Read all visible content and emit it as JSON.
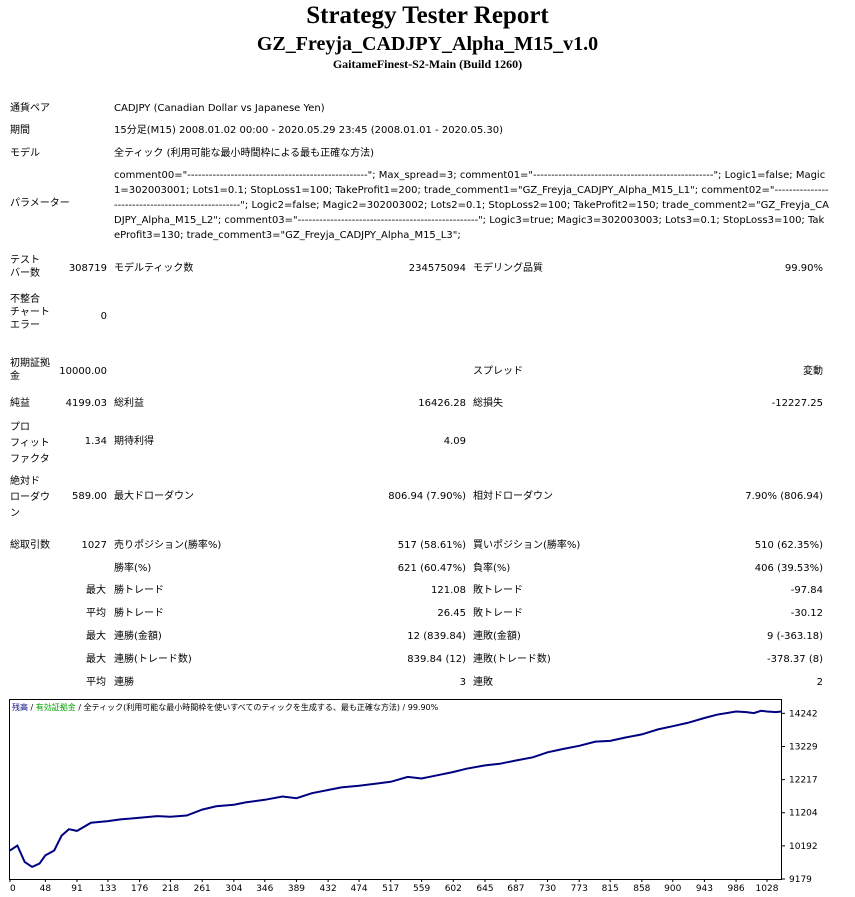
{
  "header": {
    "title": "Strategy Tester Report",
    "ea_name": "GZ_Freyja_CADJPY_Alpha_M15_v1.0",
    "server": "GaitameFinest-S2-Main (Build 1260)"
  },
  "info": {
    "symbol_label": "通貨ペア",
    "symbol_value": "CADJPY (Canadian Dollar vs Japanese Yen)",
    "period_label": "期間",
    "period_value": "15分足(M15) 2008.01.02 00:00 - 2020.05.29 23:45 (2008.01.01 - 2020.05.30)",
    "model_label": "モデル",
    "model_value": "全ティック (利用可能な最小時間枠による最も正確な方法)",
    "params_label": "パラメーター",
    "params_value": "comment00=\"--------------------------------------------------\"; Max_spread=3; comment01=\"--------------------------------------------------\"; Logic1=false; Magic1=302003001; Lots1=0.1; StopLoss1=100; TakeProfit1=200; trade_comment1=\"GZ_Freyja_CADJPY_Alpha_M15_L1\"; comment02=\"--------------------------------------------------\"; Logic2=false; Magic2=302003002; Lots2=0.1; StopLoss2=100; TakeProfit2=150; trade_comment2=\"GZ_Freyja_CADJPY_Alpha_M15_L2\"; comment03=\"--------------------------------------------------\"; Logic3=true; Magic3=302003003; Lots3=0.1; StopLoss3=100; TakeProfit3=130; trade_comment3=\"GZ_Freyja_CADJPY_Alpha_M15_L3\";"
  },
  "stats": {
    "bars_label": "テスト\nバー数",
    "bars_value": "308719",
    "ticks_label": "モデルティック数",
    "ticks_value": "234575094",
    "quality_label": "モデリング品質",
    "quality_value": "99.90%",
    "mismatch_label": "不整合\nチャート\nエラー",
    "mismatch_value": "0",
    "deposit_label": "初期証拠\n金",
    "deposit_value": "10000.00",
    "spread_label": "スプレッド",
    "spread_value": "変動",
    "net_label": "純益",
    "net_value": "4199.03",
    "gross_profit_label": "総利益",
    "gross_profit_value": "16426.28",
    "gross_loss_label": "総損失",
    "gross_loss_value": "-12227.25",
    "pf_label": "プロ\nフィット\nファクタ",
    "pf_value": "1.34",
    "expected_label": "期待利得",
    "expected_value": "4.09",
    "abs_dd_label": "絶対ド\nローダウ\nン",
    "abs_dd_value": "589.00",
    "max_dd_label": "最大ドローダウン",
    "max_dd_value": "806.94 (7.90%)",
    "rel_dd_label": "相対ドローダウン",
    "rel_dd_value": "7.90% (806.94)",
    "trades_label": "総取引数",
    "trades_value": "1027",
    "short_label": "売りポジション(勝率%)",
    "short_value": "517 (58.61%)",
    "long_label": "買いポジション(勝率%)",
    "long_value": "510 (62.35%)",
    "win_label": "勝率(%)",
    "win_value": "621 (60.47%)",
    "loss_label": "負率(%)",
    "loss_value": "406 (39.53%)",
    "max_prefix": "最大",
    "avg_prefix": "平均",
    "largest_win_label": "勝トレード",
    "largest_win_value": "121.08",
    "largest_loss_label": "敗トレード",
    "largest_loss_value": "-97.84",
    "avg_win_label": "勝トレード",
    "avg_win_value": "26.45",
    "avg_loss_label": "敗トレード",
    "avg_loss_value": "-30.12",
    "max_cons_win_label": "連勝(金額)",
    "max_cons_win_value": "12 (839.84)",
    "max_cons_loss_label": "連敗(金額)",
    "max_cons_loss_value": "9 (-363.18)",
    "max_cons_profit_label": "連勝(トレード数)",
    "max_cons_profit_value": "839.84 (12)",
    "max_cons_lossamt_label": "連敗(トレード数)",
    "max_cons_lossamt_value": "-378.37 (8)",
    "avg_cons_win_label": "連勝",
    "avg_cons_win_value": "3",
    "avg_cons_loss_label": "連敗",
    "avg_cons_loss_value": "2"
  },
  "chart_legend": {
    "balance": "残高",
    "sep1": " / ",
    "equity": "有効証拠金",
    "sep2": " / ",
    "desc": "全ティック(利用可能な最小時間枠を使いすべてのティックを生成する、最も正確な方法) / 99.90%"
  },
  "chart_data": {
    "type": "line",
    "title": "",
    "x_ticks": [
      "0",
      "48",
      "91",
      "133",
      "176",
      "218",
      "261",
      "304",
      "346",
      "389",
      "432",
      "474",
      "517",
      "559",
      "602",
      "645",
      "687",
      "730",
      "773",
      "815",
      "858",
      "900",
      "943",
      "986",
      "1028"
    ],
    "y_ticks": [
      "14242",
      "13229",
      "12217",
      "11204",
      "10192",
      "9179"
    ],
    "xlim": [
      0,
      1047
    ],
    "ylim": [
      9179,
      14650
    ],
    "series": [
      {
        "line_color": "#000080",
        "x": [
          0,
          10,
          20,
          30,
          40,
          48,
          60,
          70,
          80,
          91,
          110,
          133,
          150,
          176,
          200,
          218,
          240,
          261,
          280,
          304,
          320,
          346,
          370,
          389,
          410,
          432,
          450,
          474,
          500,
          517,
          540,
          559,
          580,
          602,
          620,
          645,
          665,
          687,
          710,
          730,
          750,
          773,
          795,
          815,
          835,
          858,
          880,
          900,
          920,
          943,
          960,
          986,
          1000,
          1010,
          1020,
          1028,
          1040,
          1047
        ],
        "y": [
          10050,
          10200,
          9700,
          9550,
          9650,
          9900,
          10050,
          10500,
          10700,
          10650,
          10900,
          10950,
          11000,
          11050,
          11100,
          11080,
          11120,
          11300,
          11400,
          11450,
          11520,
          11600,
          11700,
          11650,
          11800,
          11900,
          11980,
          12030,
          12100,
          12150,
          12300,
          12250,
          12350,
          12450,
          12550,
          12650,
          12700,
          12800,
          12900,
          13050,
          13150,
          13250,
          13380,
          13400,
          13500,
          13600,
          13750,
          13850,
          13950,
          14100,
          14200,
          14300,
          14280,
          14250,
          14320,
          14300,
          14280,
          14300
        ]
      }
    ]
  }
}
